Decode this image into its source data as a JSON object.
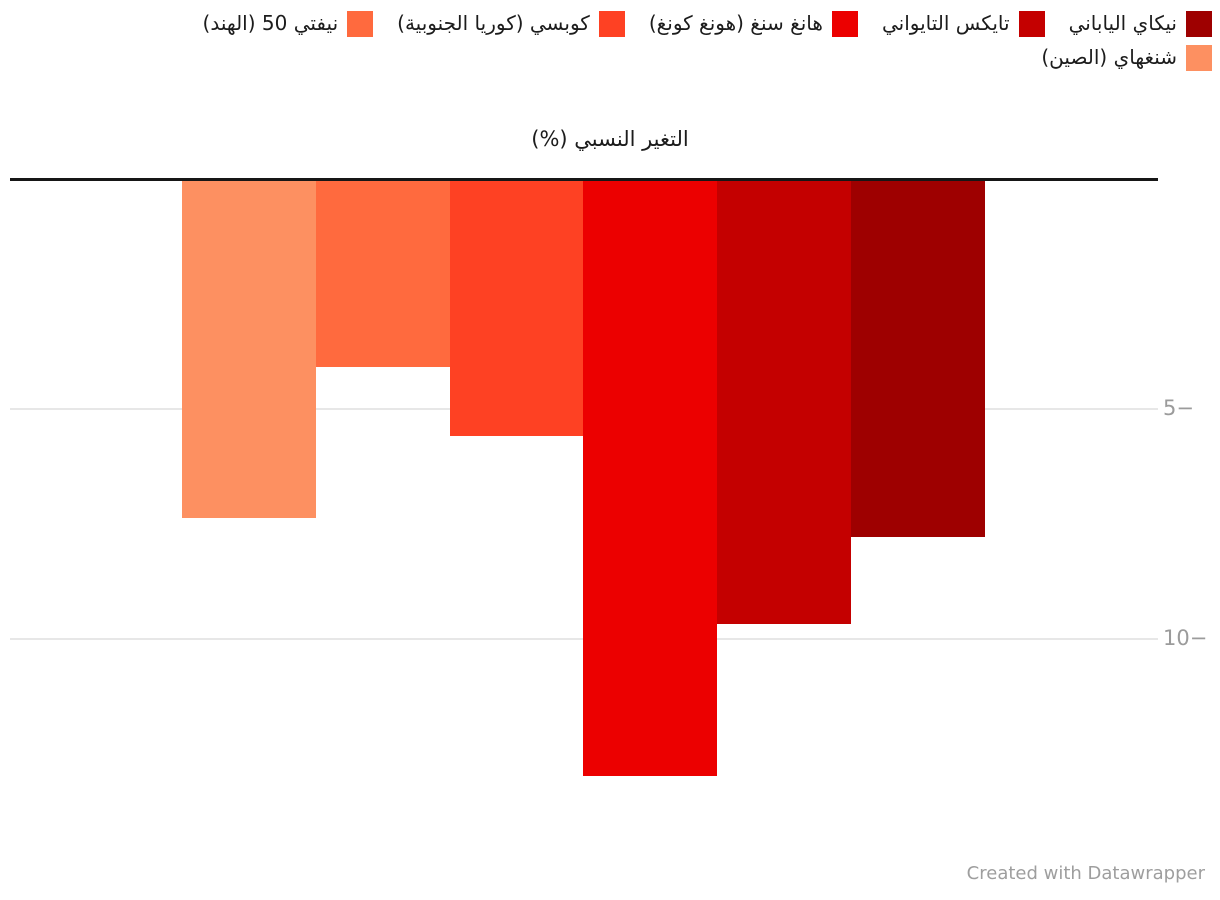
{
  "legend": {
    "rows": [
      [
        {
          "label": "نيكاي الياباني",
          "color": "#9e0000"
        },
        {
          "label": "تايكس التايواني",
          "color": "#c40000"
        },
        {
          "label": "هانغ سنغ (هونغ كونغ)",
          "color": "#ec0000"
        },
        {
          "label": "كوبسي (كوريا الجنوبية)",
          "color": "#fe4123"
        },
        {
          "label": "نيفتي 50 (الهند)",
          "color": "#ff6a3e"
        }
      ],
      [
        {
          "label": "شنغهاي (الصين)",
          "color": "#fd9061"
        }
      ]
    ]
  },
  "axis": {
    "title": "التغير النسبي (%)",
    "ticks": [
      {
        "value": -5,
        "display": "5−"
      },
      {
        "value": -10,
        "display": "10−"
      }
    ]
  },
  "chart_data": {
    "type": "bar",
    "direction": "rtl",
    "title": "التغير النسبي (%)",
    "xlabel": "",
    "ylabel": "التغير النسبي (%)",
    "ylim": [
      0,
      -15
    ],
    "grid": "horizontal",
    "legend_position": "top-right",
    "categories": [
      "نيكاي الياباني",
      "تايكس التايواني",
      "هانغ سنغ (هونغ كونغ)",
      "كوبسي (كوريا الجنوبية)",
      "نيفتي 50 (الهند)",
      "شنغهاي (الصين)"
    ],
    "values": [
      -7.8,
      -9.7,
      -13.0,
      -5.6,
      -4.1,
      -7.4
    ],
    "colors": [
      "#9e0000",
      "#c40000",
      "#ec0000",
      "#fe4123",
      "#ff6a3e",
      "#fd9061"
    ],
    "axis_tick_labels": [
      "5−",
      "10−"
    ],
    "zero_line_color": "#161616",
    "gridline_color": "#e7e7e7"
  },
  "footer": {
    "credit": "Created with Datawrapper"
  }
}
